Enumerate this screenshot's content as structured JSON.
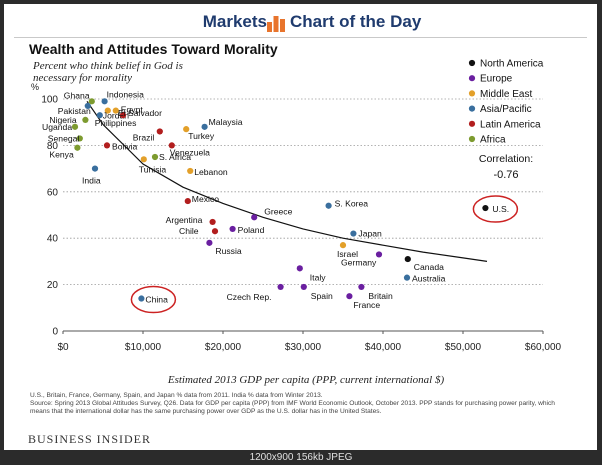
{
  "header": {
    "left": "Markets",
    "right": "Chart of the Day"
  },
  "brand": "BUSINESS INSIDER",
  "image_caption": "1200x900 156kb JPEG",
  "notes": {
    "line1": "U.S., Britain, France, Germany, Spain, and Japan % data from 2011. India % data from Winter 2013.",
    "line2": "Source: Spring 2013 Global Attitudes Survey, Q26.  Data for GDP per capita (PPP) from IMF World Economic Outlook, October 2013. PPP stands for purchasing power parity, which means that the international dollar has the same purchasing power over GDP as the U.S. dollar has in the United States."
  },
  "colors": {
    "North America": "#111111",
    "Europe": "#6a1fa0",
    "Middle East": "#e3a02a",
    "Asia/Pacific": "#3a6f9e",
    "Latin America": "#b21e1e",
    "Africa": "#7d9b2f",
    "highlight": "#cc2222"
  },
  "chart_data": {
    "type": "scatter",
    "title": "Wealth and Attitudes Toward Morality",
    "subtitle": "Percent who think belief in God is necessary for morality",
    "ylabel": "%",
    "xlabel": "Estimated 2013 GDP per capita (PPP, current international $)",
    "xlim": [
      0,
      60000
    ],
    "ylim": [
      0,
      100
    ],
    "x_ticks": [
      0,
      10000,
      20000,
      30000,
      40000,
      50000,
      60000
    ],
    "x_tick_labels": [
      "$0",
      "$10,000",
      "$20,000",
      "$30,000",
      "$40,000",
      "$50,000",
      "$60,000"
    ],
    "y_ticks": [
      0,
      20,
      40,
      60,
      80,
      100
    ],
    "y_tick_labels": [
      "0",
      "20",
      "40",
      "60",
      "80",
      "100"
    ],
    "grid": "horizontal dotted",
    "legend_position": "top-right",
    "legend": [
      "North America",
      "Europe",
      "Middle East",
      "Asia/Pacific",
      "Latin America",
      "Africa"
    ],
    "annotation": {
      "label": "Correlation:",
      "value": "-0.76"
    },
    "trendline": "logarithmic",
    "trendline_points": [
      [
        3000,
        99
      ],
      [
        5000,
        89
      ],
      [
        10000,
        72
      ],
      [
        15000,
        62
      ],
      [
        20000,
        55
      ],
      [
        25000,
        49
      ],
      [
        30000,
        44
      ],
      [
        35000,
        40
      ],
      [
        40000,
        37
      ],
      [
        45000,
        34
      ],
      [
        50000,
        31.5
      ],
      [
        53000,
        30
      ]
    ],
    "points": [
      {
        "label": "Ghana",
        "group": "Africa",
        "x": 3600,
        "y": 99
      },
      {
        "label": "Indonesia",
        "group": "Asia/Pacific",
        "x": 5200,
        "y": 99
      },
      {
        "label": "Pakistan",
        "group": "Asia/Pacific",
        "x": 3100,
        "y": 97
      },
      {
        "label": "Jordan",
        "group": "Middle East",
        "x": 5600,
        "y": 95
      },
      {
        "label": "Egypt",
        "group": "Middle East",
        "x": 6600,
        "y": 95
      },
      {
        "label": "Nigeria",
        "group": "Africa",
        "x": 2800,
        "y": 91
      },
      {
        "label": "Philippines",
        "group": "Asia/Pacific",
        "x": 4600,
        "y": 93
      },
      {
        "label": "El Salvador",
        "group": "Latin America",
        "x": 7500,
        "y": 93
      },
      {
        "label": "Uganda",
        "group": "Africa",
        "x": 1500,
        "y": 88
      },
      {
        "label": "Malaysia",
        "group": "Asia/Pacific",
        "x": 17700,
        "y": 88
      },
      {
        "label": "Turkey",
        "group": "Middle East",
        "x": 15400,
        "y": 87
      },
      {
        "label": "Senegal",
        "group": "Africa",
        "x": 2100,
        "y": 83
      },
      {
        "label": "Brazil",
        "group": "Latin America",
        "x": 12100,
        "y": 86
      },
      {
        "label": "Bolivia",
        "group": "Latin America",
        "x": 5500,
        "y": 80
      },
      {
        "label": "Venezuela",
        "group": "Latin America",
        "x": 13600,
        "y": 80
      },
      {
        "label": "Kenya",
        "group": "Africa",
        "x": 1800,
        "y": 79
      },
      {
        "label": "S. Africa",
        "group": "Africa",
        "x": 11500,
        "y": 75
      },
      {
        "label": "Tunisia",
        "group": "Middle East",
        "x": 10100,
        "y": 74
      },
      {
        "label": "Lebanon",
        "group": "Middle East",
        "x": 15900,
        "y": 69
      },
      {
        "label": "India",
        "group": "Asia/Pacific",
        "x": 4000,
        "y": 70
      },
      {
        "label": "Mexico",
        "group": "Latin America",
        "x": 15600,
        "y": 56
      },
      {
        "label": "Greece",
        "group": "Europe",
        "x": 23900,
        "y": 49
      },
      {
        "label": "S. Korea",
        "group": "Asia/Pacific",
        "x": 33200,
        "y": 54
      },
      {
        "label": "Argentina",
        "group": "Latin America",
        "x": 18700,
        "y": 47
      },
      {
        "label": "Chile",
        "group": "Latin America",
        "x": 19000,
        "y": 43
      },
      {
        "label": "Poland",
        "group": "Europe",
        "x": 21200,
        "y": 44
      },
      {
        "label": "Russia",
        "group": "Europe",
        "x": 18300,
        "y": 38
      },
      {
        "label": "Japan",
        "group": "Asia/Pacific",
        "x": 36300,
        "y": 42
      },
      {
        "label": "Israel",
        "group": "Middle East",
        "x": 35000,
        "y": 37
      },
      {
        "label": "Germany",
        "group": "Europe",
        "x": 39500,
        "y": 33
      },
      {
        "label": "Canada",
        "group": "North America",
        "x": 43100,
        "y": 31
      },
      {
        "label": "U.S.",
        "group": "North America",
        "x": 52800,
        "y": 53
      },
      {
        "label": "Italy",
        "group": "Europe",
        "x": 29600,
        "y": 27
      },
      {
        "label": "Australia",
        "group": "Asia/Pacific",
        "x": 43000,
        "y": 23
      },
      {
        "label": "Czech Rep.",
        "group": "Europe",
        "x": 27200,
        "y": 19
      },
      {
        "label": "Spain",
        "group": "Europe",
        "x": 30100,
        "y": 19
      },
      {
        "label": "Britain",
        "group": "Europe",
        "x": 37300,
        "y": 19
      },
      {
        "label": "France",
        "group": "Europe",
        "x": 35800,
        "y": 15
      },
      {
        "label": "China",
        "group": "Asia/Pacific",
        "x": 9800,
        "y": 14
      }
    ],
    "highlighted": [
      "China",
      "U.S."
    ]
  }
}
